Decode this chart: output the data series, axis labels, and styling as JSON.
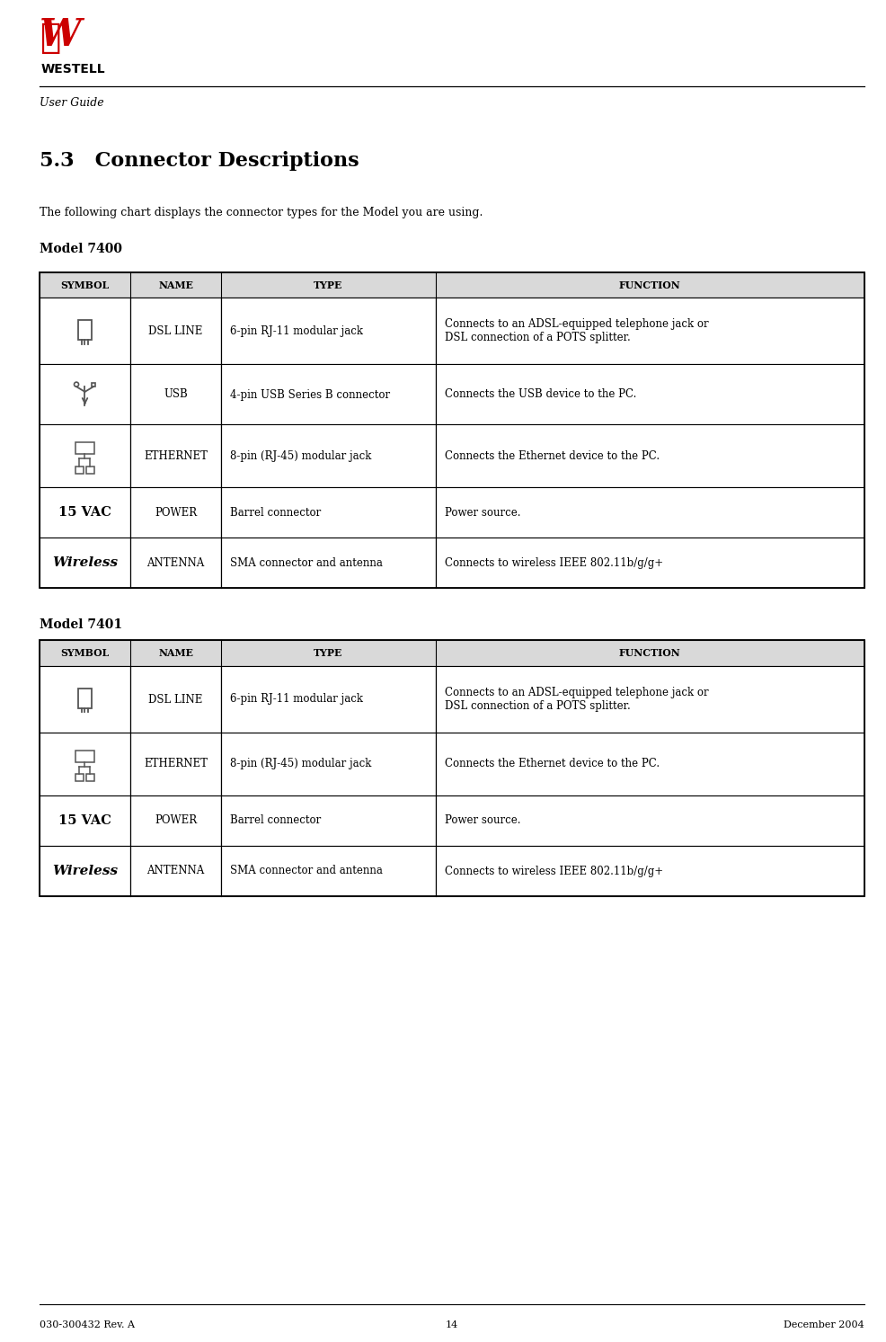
{
  "page_width": 9.87,
  "page_height": 14.93,
  "bg_color": "#ffffff",
  "section_title": "5.3   Connector Descriptions",
  "intro_text": "The following chart displays the connector types for the Model you are using.",
  "model1_label": "Model 7400",
  "model2_label": "Model 7401",
  "footer_left": "030-300432 Rev. A",
  "footer_center": "14",
  "footer_right": "December 2004",
  "col_headers": [
    "SYMBOL",
    "NAME",
    "TYPE",
    "FUNCTION"
  ],
  "header_bg": "#d9d9d9",
  "line_color": "#000000",
  "table1_rows": [
    {
      "symbol_type": "dsl",
      "name": "DSL LINE",
      "type": "6-pin RJ-11 modular jack",
      "function": "Connects to an ADSL-equipped telephone jack or\nDSL connection of a POTS splitter."
    },
    {
      "symbol_type": "usb",
      "name": "USB",
      "type": "4-pin USB Series B connector",
      "function": "Connects the USB device to the PC."
    },
    {
      "symbol_type": "ethernet",
      "name": "ETHERNET",
      "type": "8-pin (RJ-45) modular jack",
      "function": "Connects the Ethernet device to the PC."
    },
    {
      "symbol_type": "power",
      "name": "POWER",
      "type": "Barrel connector",
      "function": "Power source.",
      "symbol_text": "15 VAC"
    },
    {
      "symbol_type": "wireless",
      "name": "ANTENNA",
      "type": "SMA connector and antenna",
      "function": "Connects to wireless IEEE 802.11b/g/g+",
      "symbol_text": "Wireless"
    }
  ],
  "table2_rows": [
    {
      "symbol_type": "dsl",
      "name": "DSL LINE",
      "type": "6-pin RJ-11 modular jack",
      "function": "Connects to an ADSL-equipped telephone jack or\nDSL connection of a POTS splitter."
    },
    {
      "symbol_type": "ethernet",
      "name": "ETHERNET",
      "type": "8-pin (RJ-45) modular jack",
      "function": "Connects the Ethernet device to the PC."
    },
    {
      "symbol_type": "power",
      "name": "POWER",
      "type": "Barrel connector",
      "function": "Power source.",
      "symbol_text": "15 VAC"
    },
    {
      "symbol_type": "wireless",
      "name": "ANTENNA",
      "type": "SMA connector and antenna",
      "function": "Connects to wireless IEEE 802.11b/g/g+",
      "symbol_text": "Wireless"
    }
  ]
}
